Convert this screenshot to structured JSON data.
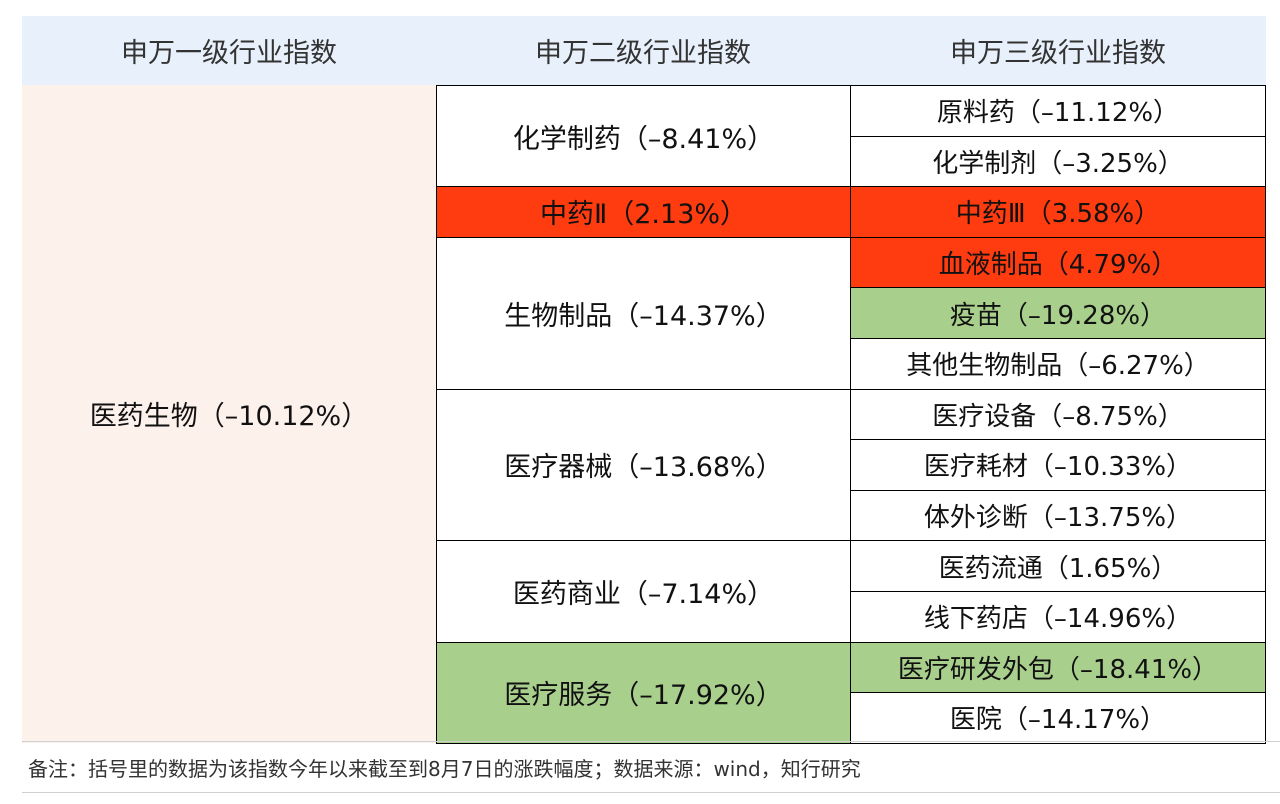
{
  "chart_data": {
    "type": "table",
    "headers": [
      "申万一级行业指数",
      "申万二级行业指数",
      "申万三级行业指数"
    ],
    "level1": {
      "label": "医药生物（–10.12%）",
      "value": -10.12
    },
    "level2": [
      {
        "label": "化学制药（–8.41%）",
        "value": -8.41,
        "color": "#ffffff",
        "children": [
          {
            "label": "原料药（–11.12%）",
            "value": -11.12,
            "color": "#ffffff"
          },
          {
            "label": "化学制剂（–3.25%）",
            "value": -3.25,
            "color": "#ffffff"
          }
        ]
      },
      {
        "label": "中药Ⅱ（2.13%）",
        "value": 2.13,
        "color": "#ff3b10",
        "children": [
          {
            "label": "中药Ⅲ（3.58%）",
            "value": 3.58,
            "color": "#ff3b10"
          }
        ]
      },
      {
        "label": "生物制品（–14.37%）",
        "value": -14.37,
        "color": "#ffffff",
        "children": [
          {
            "label": "血液制品（4.79%）",
            "value": 4.79,
            "color": "#ff3b10"
          },
          {
            "label": "疫苗（–19.28%）",
            "value": -19.28,
            "color": "#a9cf8d"
          },
          {
            "label": "其他生物制品（–6.27%）",
            "value": -6.27,
            "color": "#ffffff"
          }
        ]
      },
      {
        "label": "医疗器械（–13.68%）",
        "value": -13.68,
        "color": "#ffffff",
        "children": [
          {
            "label": "医疗设备（–8.75%）",
            "value": -8.75,
            "color": "#ffffff"
          },
          {
            "label": "医疗耗材（–10.33%）",
            "value": -10.33,
            "color": "#ffffff"
          },
          {
            "label": "体外诊断（–13.75%）",
            "value": -13.75,
            "color": "#ffffff"
          }
        ]
      },
      {
        "label": "医药商业（–7.14%）",
        "value": -7.14,
        "color": "#ffffff",
        "children": [
          {
            "label": "医药流通（1.65%）",
            "value": 1.65,
            "color": "#ffffff"
          },
          {
            "label": "线下药店（–14.96%）",
            "value": -14.96,
            "color": "#ffffff"
          }
        ]
      },
      {
        "label": "医疗服务（–17.92%）",
        "value": -17.92,
        "color": "#a9cf8d",
        "children": [
          {
            "label": "医疗研发外包（–18.41%）",
            "value": -18.41,
            "color": "#a9cf8d"
          },
          {
            "label": "医院（–14.17%）",
            "value": -14.17,
            "color": "#ffffff"
          }
        ]
      }
    ],
    "footnote": "备注：括号里的数据为该指数今年以来截至到8月7日的涨跌幅度；数据来源：wind，知行研究"
  }
}
